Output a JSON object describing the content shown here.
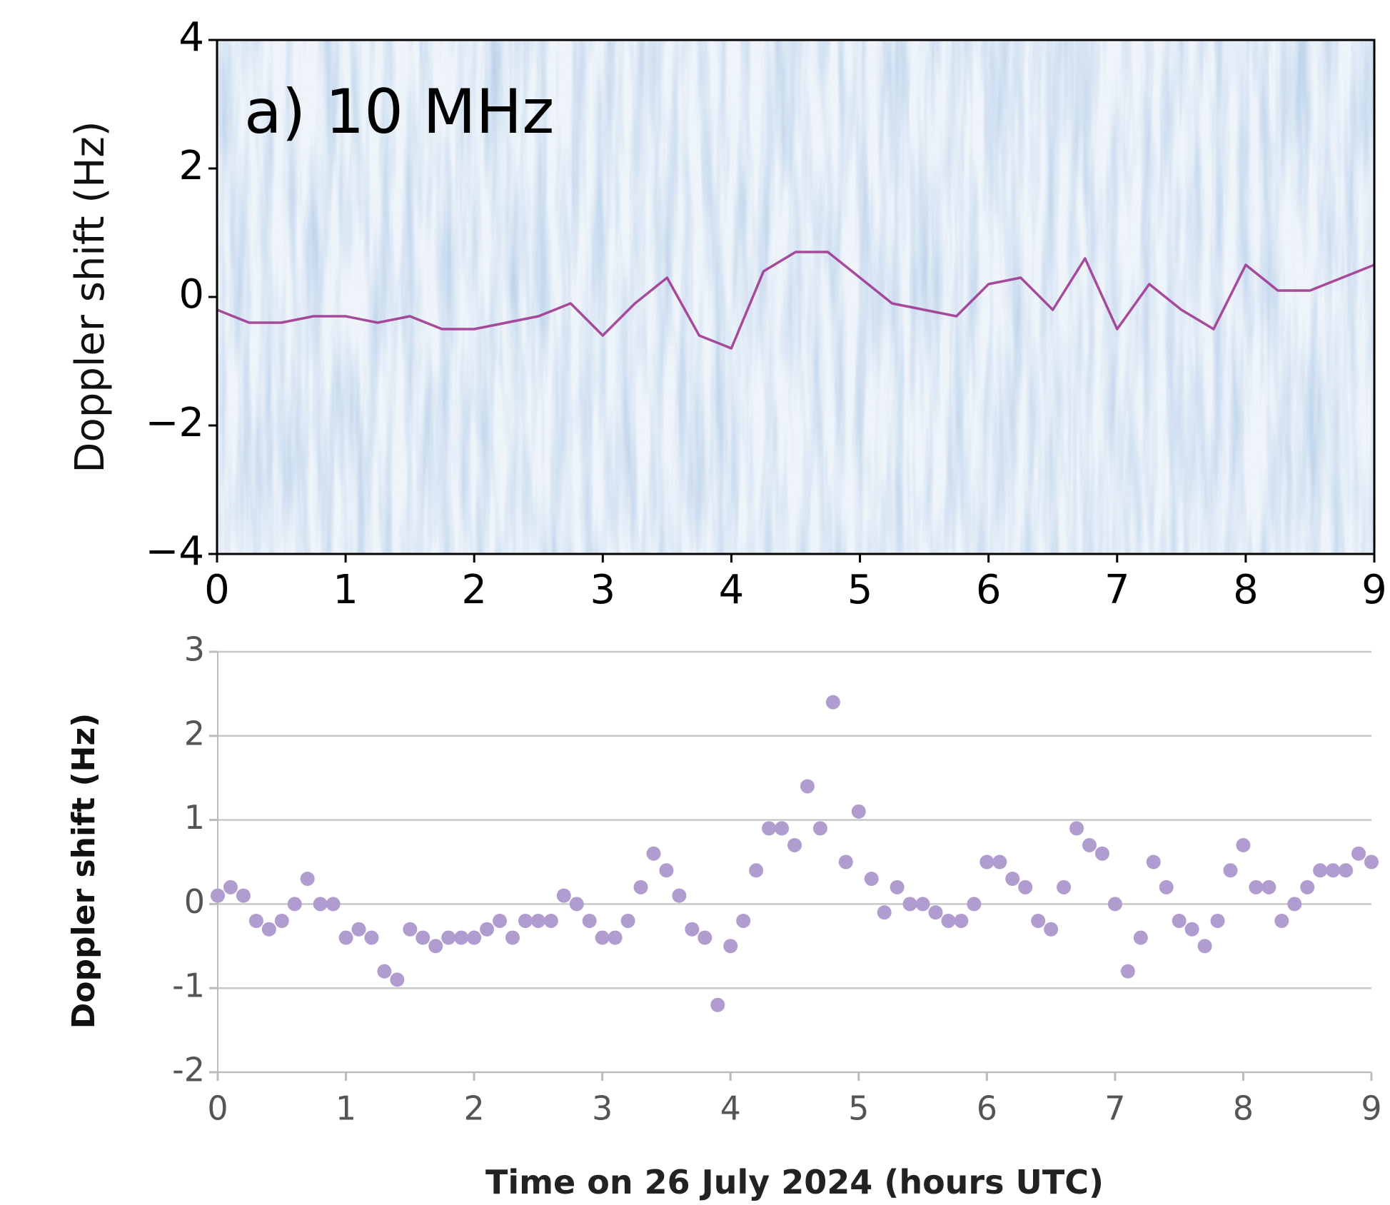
{
  "chart_data": [
    {
      "type": "spectrogram",
      "annotation": "a) 10 MHz",
      "y_label": "Doppler shift (Hz)",
      "xlim": [
        0,
        9
      ],
      "ylim": [
        -4,
        4
      ],
      "xticks": [
        0,
        1,
        2,
        3,
        4,
        5,
        6,
        7,
        8,
        9
      ],
      "yticks": [
        {
          "value": -4,
          "label": "−4"
        },
        {
          "value": -2,
          "label": "−2"
        },
        0,
        2,
        4
      ],
      "color": "#9b2d8a",
      "x": [
        0,
        0.25,
        0.5,
        0.75,
        1,
        1.25,
        1.5,
        1.75,
        2,
        2.25,
        2.5,
        2.75,
        3,
        3.25,
        3.5,
        3.75,
        4,
        4.25,
        4.5,
        4.75,
        5,
        5.25,
        5.5,
        5.75,
        6,
        6.25,
        6.5,
        6.75,
        7,
        7.25,
        7.5,
        7.75,
        8,
        8.25,
        8.5,
        8.75,
        9
      ],
      "values": [
        -0.2,
        -0.4,
        -0.4,
        -0.3,
        -0.3,
        -0.4,
        -0.3,
        -0.5,
        -0.5,
        -0.4,
        -0.3,
        -0.1,
        -0.6,
        -0.1,
        0.3,
        -0.6,
        -0.8,
        0.4,
        0.7,
        0.7,
        0.3,
        -0.1,
        -0.2,
        -0.3,
        0.2,
        0.3,
        -0.2,
        0.6,
        -0.5,
        0.2,
        -0.2,
        -0.5,
        0.5,
        0.1,
        0.1,
        0.3,
        0.5
      ]
    },
    {
      "type": "scatter",
      "y_label": "Doppler shift (Hz)",
      "x_label": "Time on 26 July 2024 (hours UTC)",
      "xlim": [
        0,
        9
      ],
      "ylim": [
        -2,
        3
      ],
      "xticks": [
        0,
        1,
        2,
        3,
        4,
        5,
        6,
        7,
        8,
        9
      ],
      "yticks": [
        -2,
        -1,
        0,
        1,
        2,
        3
      ],
      "grid": true,
      "color": "#b09ccf",
      "x": [
        0,
        0.1,
        0.2,
        0.3,
        0.4,
        0.5,
        0.6,
        0.7,
        0.8,
        0.9,
        1,
        1.1,
        1.2,
        1.3,
        1.4,
        1.5,
        1.6,
        1.7,
        1.8,
        1.9,
        2,
        2.1,
        2.2,
        2.3,
        2.4,
        2.5,
        2.6,
        2.7,
        2.8,
        2.9,
        3,
        3.1,
        3.2,
        3.3,
        3.4,
        3.5,
        3.6,
        3.7,
        3.8,
        3.9,
        4,
        4.1,
        4.2,
        4.3,
        4.4,
        4.5,
        4.6,
        4.7,
        4.8,
        4.9,
        5,
        5.1,
        5.2,
        5.3,
        5.4,
        5.5,
        5.6,
        5.7,
        5.8,
        5.9,
        6,
        6.1,
        6.2,
        6.3,
        6.4,
        6.5,
        6.6,
        6.7,
        6.8,
        6.9,
        7,
        7.1,
        7.2,
        7.3,
        7.4,
        7.5,
        7.6,
        7.7,
        7.8,
        7.9,
        8,
        8.1,
        8.2,
        8.3,
        8.4,
        8.5,
        8.6,
        8.7,
        8.8,
        8.9,
        9
      ],
      "values": [
        0.1,
        0.2,
        0.1,
        -0.2,
        -0.3,
        -0.2,
        0.0,
        0.3,
        0.0,
        0.0,
        -0.4,
        -0.3,
        -0.4,
        -0.8,
        -0.9,
        -0.3,
        -0.4,
        -0.5,
        -0.4,
        -0.4,
        -0.4,
        -0.3,
        -0.2,
        -0.4,
        -0.2,
        -0.2,
        -0.2,
        0.1,
        0.0,
        -0.2,
        -0.4,
        -0.4,
        -0.2,
        0.2,
        0.6,
        0.4,
        0.1,
        -0.3,
        -0.4,
        -1.2,
        -0.5,
        -0.2,
        0.4,
        0.9,
        0.9,
        0.7,
        1.4,
        0.9,
        2.4,
        0.5,
        1.1,
        0.3,
        -0.1,
        0.2,
        0.0,
        0.0,
        -0.1,
        -0.2,
        -0.2,
        0.0,
        0.5,
        0.5,
        0.3,
        0.2,
        -0.2,
        -0.3,
        0.2,
        0.9,
        0.7,
        0.6,
        0.0,
        -0.8,
        -0.4,
        0.5,
        0.2,
        -0.2,
        -0.3,
        -0.5,
        -0.2,
        0.4,
        0.7,
        0.2,
        0.2,
        -0.2,
        0.0,
        0.2,
        0.4,
        0.4,
        0.4,
        0.6,
        0.5
      ]
    }
  ]
}
